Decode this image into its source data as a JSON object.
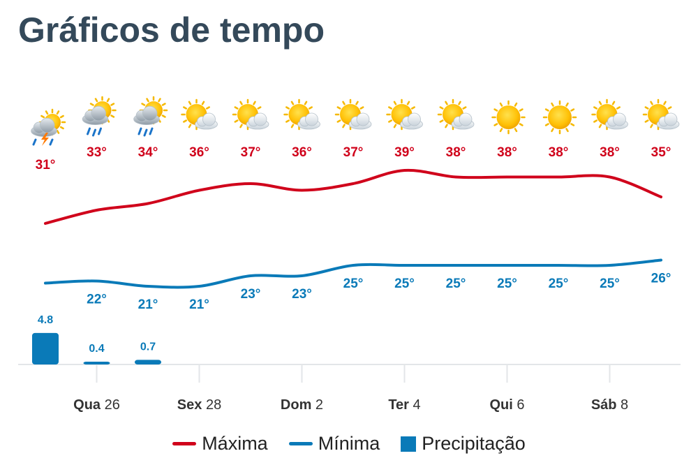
{
  "title": "Gráficos de tempo",
  "chart_data": {
    "type": "line",
    "days": [
      {
        "icon": "thunderstorm-icon",
        "max": 31,
        "min": null,
        "precip": 4.8
      },
      {
        "icon": "partly-cloudy-rain-icon",
        "max": 33,
        "min": 22,
        "precip": 0.4
      },
      {
        "icon": "partly-cloudy-rain-icon",
        "max": 34,
        "min": 21,
        "precip": 0.7
      },
      {
        "icon": "partly-cloudy-icon",
        "max": 36,
        "min": 21,
        "precip": null
      },
      {
        "icon": "partly-cloudy-icon",
        "max": 37,
        "min": 23,
        "precip": null
      },
      {
        "icon": "partly-cloudy-icon",
        "max": 36,
        "min": 23,
        "precip": null
      },
      {
        "icon": "partly-cloudy-icon",
        "max": 37,
        "min": 25,
        "precip": null
      },
      {
        "icon": "partly-cloudy-icon",
        "max": 39,
        "min": 25,
        "precip": null
      },
      {
        "icon": "partly-cloudy-icon",
        "max": 38,
        "min": 25,
        "precip": null
      },
      {
        "icon": "sun-icon",
        "max": 38,
        "min": 25,
        "precip": null
      },
      {
        "icon": "sun-icon",
        "max": 38,
        "min": 25,
        "precip": null
      },
      {
        "icon": "partly-cloudy-icon",
        "max": 38,
        "min": 25,
        "precip": null
      },
      {
        "icon": "partly-cloudy-icon",
        "max": 35,
        "min": 26,
        "precip": null
      }
    ],
    "temp_label_suffix": "°",
    "x_ticks": [
      {
        "day_index": 1,
        "weekday": "Qua",
        "date": "26"
      },
      {
        "day_index": 3,
        "weekday": "Sex",
        "date": "28"
      },
      {
        "day_index": 5,
        "weekday": "Dom",
        "date": "2"
      },
      {
        "day_index": 7,
        "weekday": "Ter",
        "date": "4"
      },
      {
        "day_index": 9,
        "weekday": "Qui",
        "date": "6"
      },
      {
        "day_index": 11,
        "weekday": "Sáb",
        "date": "8"
      }
    ],
    "series": [
      {
        "name": "Máxima",
        "color": "#d0021b"
      },
      {
        "name": "Mínima",
        "color": "#0a7ab8"
      },
      {
        "name": "Precipitação",
        "color": "#0a7ab8"
      }
    ],
    "legend_position": "bottom-center",
    "grid": false
  }
}
